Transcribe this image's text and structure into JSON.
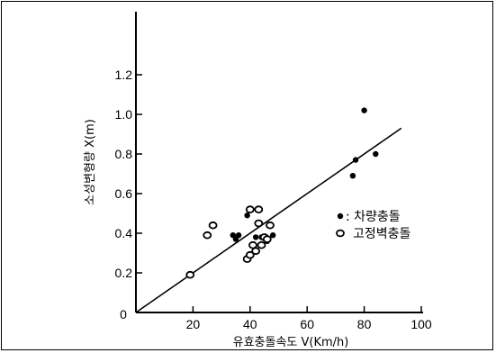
{
  "chart_data": {
    "type": "scatter",
    "title": "",
    "xlabel": "유효충돌속도 V(Km/h)",
    "ylabel": "소성변형량 X(m)",
    "xlim": [
      0,
      100
    ],
    "ylim": [
      0,
      1.2
    ],
    "x_ticks": [
      20,
      40,
      60,
      80,
      100
    ],
    "y_ticks": [
      0.2,
      0.4,
      0.6,
      0.8,
      1.0,
      1.2
    ],
    "x_tick_labels": [
      "20",
      "40",
      "60",
      "80",
      "100"
    ],
    "y_tick_labels": [
      "0.2",
      "0.4",
      "0.6",
      "0.8",
      "1.0",
      "1.2"
    ],
    "origin_label": "0",
    "grid": false,
    "legend_position": "right",
    "series": [
      {
        "name": "차량충돌",
        "marker": "filled-circle",
        "legend_label": ":  차량충돌",
        "points": [
          [
            34,
            0.39
          ],
          [
            35,
            0.37
          ],
          [
            36,
            0.39
          ],
          [
            39,
            0.49
          ],
          [
            42,
            0.38
          ],
          [
            44,
            0.38
          ],
          [
            46,
            0.36
          ],
          [
            48,
            0.39
          ],
          [
            76,
            0.69
          ],
          [
            77,
            0.77
          ],
          [
            80,
            1.02
          ],
          [
            84,
            0.8
          ]
        ]
      },
      {
        "name": "고정벽충돌",
        "marker": "open-circle",
        "legend_label": "고정벽충돌",
        "points": [
          [
            19,
            0.19
          ],
          [
            25,
            0.39
          ],
          [
            27,
            0.44
          ],
          [
            39,
            0.27
          ],
          [
            40,
            0.29
          ],
          [
            40,
            0.52
          ],
          [
            41,
            0.34
          ],
          [
            42,
            0.31
          ],
          [
            43,
            0.45
          ],
          [
            43,
            0.52
          ],
          [
            44,
            0.34
          ],
          [
            45,
            0.38
          ],
          [
            46,
            0.37
          ],
          [
            47,
            0.44
          ]
        ]
      }
    ],
    "fit_line": {
      "from": [
        0,
        0
      ],
      "to": [
        93,
        0.93
      ]
    }
  }
}
